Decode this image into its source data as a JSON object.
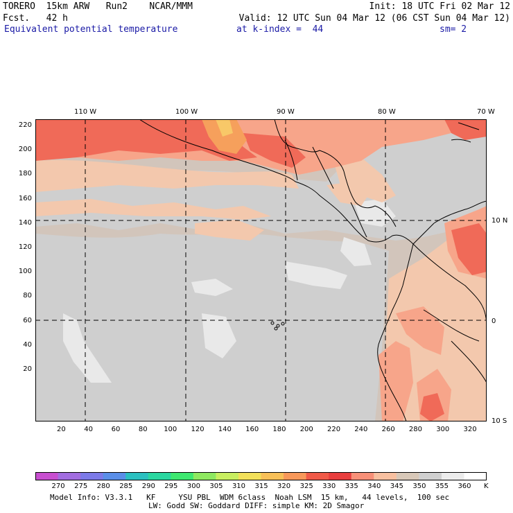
{
  "header": {
    "line1_left": "TORERO  15km ARW   Run2    NCAR/MMM",
    "line1_right": "Init: 18 UTC Fri 02 Mar 12",
    "line2_left": "Fcst.   42 h",
    "line2_right": "Valid: 12 UTC Sun 04 Mar 12 (06 CST Sun 04 Mar 12)",
    "field": "Equivalent potential temperature",
    "level": "at k-index =  44",
    "smooth": "sm= 2"
  },
  "map": {
    "top_lon_labels": [
      "110 W",
      "100 W",
      "90 W",
      "80 W",
      "70 W"
    ],
    "right_lat_labels": [
      "10 N",
      "0",
      "10 S"
    ],
    "left_grid_labels": [
      "220",
      "200",
      "180",
      "160",
      "140",
      "120",
      "100",
      "80",
      "60",
      "40",
      "20"
    ],
    "bottom_grid_labels": [
      "20",
      "40",
      "60",
      "80",
      "100",
      "120",
      "140",
      "160",
      "180",
      "200",
      "220",
      "240",
      "260",
      "280",
      "300",
      "320"
    ]
  },
  "colorbar": {
    "unit": "K",
    "labels": [
      "270",
      "275",
      "280",
      "285",
      "290",
      "295",
      "300",
      "305",
      "310",
      "315",
      "320",
      "325",
      "330",
      "335",
      "340",
      "345",
      "350",
      "355",
      "360"
    ],
    "colors": [
      "#c84fd0",
      "#a26de0",
      "#7c7ae8",
      "#5a8ee8",
      "#2bc0c0",
      "#2ad7a0",
      "#3ee870",
      "#8ee860",
      "#c8ee60",
      "#f2e05a",
      "#f8c058",
      "#f8985a",
      "#f05a48",
      "#e83e3e",
      "#f89078",
      "#f8c0a0",
      "#d8c8b8",
      "#d0d0d0",
      "#ececec",
      "#ffffff"
    ]
  },
  "footer": {
    "line1": "Model Info: V3.3.1   KF     YSU PBL  WDM 6class  Noah LSM  15 km,   44 levels,  100 sec",
    "line2": "LW: Godd SW: Goddard DIFF: simple KM: 2D Smagor"
  }
}
